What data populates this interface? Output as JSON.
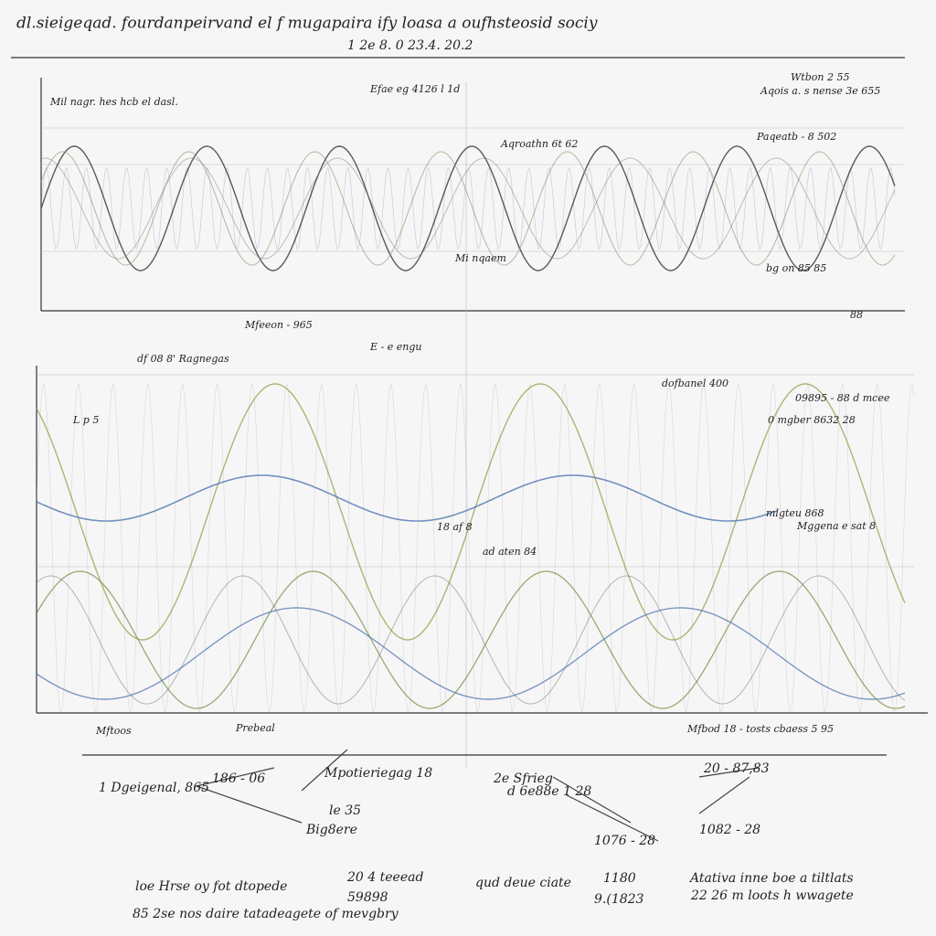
{
  "header": {
    "title": "dl.sieigeqad. fourdanpeirvand el f mugapaira  ify loasa a oufhsteosid  sociy",
    "subtitle": "1 2e 8. 0 23.4. 20.2"
  },
  "top_panel": {
    "labels": [
      "Mil nagr. hes hcb el dasl.",
      "Efae eg 4126 l 1d",
      "Aqroathn 6t 62",
      "Wtbon 2 55",
      "Aqois a. s nense 3e 655",
      "Paqeatb - 8 502",
      "Mi nqaem",
      "bg on 85 85",
      "Mfeeon - 965",
      "88"
    ]
  },
  "bottom_panel": {
    "labels": [
      "df 08 8' Ragnegas",
      "E - e engu",
      "L p 5",
      "dofbanel 400",
      "09895 - 88 d mcee",
      "0 mgber 8632 28",
      "mlgteu 868",
      "Mggena e sat 8",
      "18 af 8",
      "ad aten 84",
      "Mftoos",
      "Prebeal",
      "Mfbod 18 - tosts cbaess 5 95"
    ]
  },
  "notes": {
    "labels": [
      "1 Dgeigenal, 865",
      "186 - 06",
      "Mpotieriegag 18",
      "2e Sfrieg",
      "d 6e88e 1 28",
      "20 - 87,83",
      "le 35",
      "Big8ere",
      "1076 - 28",
      "1082 - 28",
      "loe Hrse oy fot dtopede",
      "20 4 teeead",
      "59898",
      "qud deue ciate",
      "1180",
      "9.(1823",
      "Atativa inne boe a tiltlats",
      "22 26 m loots h wwagete",
      "85 2se nos daire tatadeagete of mevgbry"
    ]
  }
}
